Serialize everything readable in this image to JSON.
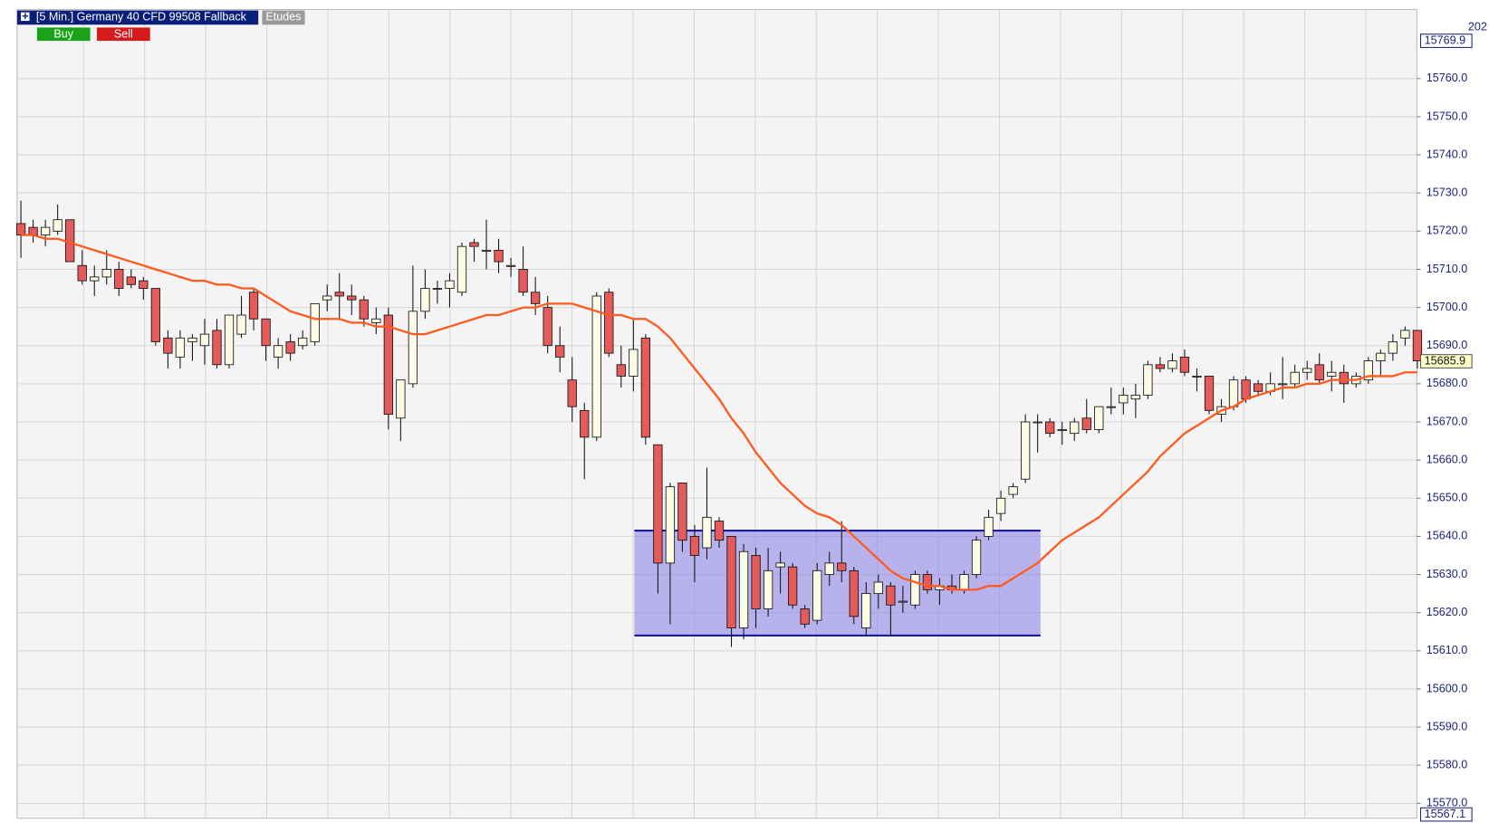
{
  "chart_data": {
    "type": "candlestick",
    "title": "[5 Min.] Germany 40 CFD  99508 Fallback",
    "buttons": [
      "Etudes",
      "Buy",
      "Sell"
    ],
    "corner_text": "202",
    "ylim": [
      15567.1,
      15769.9
    ],
    "yticks": [
      {
        "value": 15570,
        "label": "15570.0"
      },
      {
        "value": 15580,
        "label": "15580.0"
      },
      {
        "value": 15590,
        "label": "15590.0"
      },
      {
        "value": 15600,
        "label": "15600.0"
      },
      {
        "value": 15610,
        "label": "15610.0"
      },
      {
        "value": 15620,
        "label": "15620.0"
      },
      {
        "value": 15630,
        "label": "15630.0"
      },
      {
        "value": 15640,
        "label": "15640.0"
      },
      {
        "value": 15650,
        "label": "15650.0"
      },
      {
        "value": 15660,
        "label": "15660.0"
      },
      {
        "value": 15670,
        "label": "15670.0"
      },
      {
        "value": 15680,
        "label": "15680.0"
      },
      {
        "value": 15690,
        "label": "15690.0"
      },
      {
        "value": 15700,
        "label": "15700.0"
      },
      {
        "value": 15710,
        "label": "15710.0"
      },
      {
        "value": 15720,
        "label": "15720.0"
      },
      {
        "value": 15730,
        "label": "15730.0"
      },
      {
        "value": 15740,
        "label": "15740.0"
      },
      {
        "value": 15750,
        "label": "15750.0"
      },
      {
        "value": 15760,
        "label": "15760.0"
      }
    ],
    "grid": true,
    "last_price": 15685.9,
    "up_color": "#fdfbe3",
    "down_color": "#e55a5a",
    "box": {
      "low": 15614,
      "high": 15641.5,
      "color": "#8f86e6"
    },
    "ohlc": [
      [
        15722,
        15728,
        15713,
        15719
      ],
      [
        15721,
        15723,
        15717,
        15719
      ],
      [
        15719,
        15723,
        15716,
        15721
      ],
      [
        15720,
        15727,
        15719,
        15723
      ],
      [
        15723,
        15723,
        15712,
        15712
      ],
      [
        15711,
        15715,
        15706,
        15707
      ],
      [
        15707,
        15711,
        15703,
        15708
      ],
      [
        15708,
        15715,
        15706,
        15710
      ],
      [
        15710,
        15712,
        15703,
        15705
      ],
      [
        15708,
        15710,
        15705,
        15706
      ],
      [
        15707,
        15708,
        15702,
        15705
      ],
      [
        15705,
        15705,
        15690,
        15691
      ],
      [
        15692,
        15694,
        15684,
        15688
      ],
      [
        15687,
        15694,
        15684,
        15692
      ],
      [
        15691,
        15693,
        15686,
        15692
      ],
      [
        15690,
        15697,
        15685,
        15693
      ],
      [
        15694,
        15697,
        15684,
        15685
      ],
      [
        15685,
        15698,
        15684,
        15698
      ],
      [
        15693,
        15703,
        15692,
        15698
      ],
      [
        15704,
        15705,
        15694,
        15697
      ],
      [
        15697,
        15697,
        15686,
        15690
      ],
      [
        15687,
        15692,
        15684,
        15690
      ],
      [
        15691,
        15693,
        15686,
        15688
      ],
      [
        15690,
        15694,
        15689,
        15692
      ],
      [
        15691,
        15701,
        15690,
        15701
      ],
      [
        15702,
        15706,
        15699,
        15703
      ],
      [
        15704,
        15709,
        15697,
        15703
      ],
      [
        15703,
        15706,
        15698,
        15702
      ],
      [
        15702,
        15703,
        15695,
        15697
      ],
      [
        15696,
        15700,
        15693,
        15697
      ],
      [
        15698,
        15700,
        15668,
        15672
      ],
      [
        15671,
        15681,
        15665,
        15681
      ],
      [
        15680,
        15711,
        15679,
        15699
      ],
      [
        15699,
        15710,
        15697,
        15705
      ],
      [
        15705,
        15707,
        15701,
        15705
      ],
      [
        15705,
        15709,
        15700,
        15707
      ],
      [
        15704,
        15717,
        15703,
        15716
      ],
      [
        15717,
        15718,
        15712,
        15716
      ],
      [
        15715,
        15723,
        15710,
        15715
      ],
      [
        15715,
        15718,
        15709,
        15712
      ],
      [
        15711,
        15713,
        15708,
        15711
      ],
      [
        15710,
        15716,
        15703,
        15704
      ],
      [
        15704,
        15708,
        15698,
        15701
      ],
      [
        15700,
        15703,
        15688,
        15690
      ],
      [
        15690,
        15695,
        15683,
        15687
      ],
      [
        15681,
        15687,
        15670,
        15674
      ],
      [
        15673,
        15675,
        15655,
        15666
      ],
      [
        15666,
        15704,
        15665,
        15703
      ],
      [
        15704,
        15705,
        15687,
        15688
      ],
      [
        15685,
        15690,
        15679,
        15682
      ],
      [
        15682,
        15697,
        15678,
        15689
      ],
      [
        15692,
        15693,
        15664,
        15666
      ],
      [
        15664,
        15664,
        15625,
        15633
      ],
      [
        15633,
        15654,
        15617,
        15653
      ],
      [
        15654,
        15654,
        15636,
        15639
      ],
      [
        15640,
        15643,
        15628,
        15635
      ],
      [
        15637,
        15658,
        15634,
        15645
      ],
      [
        15644,
        15645,
        15637,
        15639
      ],
      [
        15640,
        15640,
        15611,
        15616
      ],
      [
        15616,
        15638,
        15613,
        15636
      ],
      [
        15635,
        15637,
        15616,
        15621
      ],
      [
        15621,
        15637,
        15619,
        15631
      ],
      [
        15632,
        15636,
        15625,
        15633
      ],
      [
        15632,
        15633,
        15621,
        15622
      ],
      [
        15621,
        15622,
        15616,
        15617
      ],
      [
        15618,
        15633,
        15617,
        15631
      ],
      [
        15630,
        15636,
        15627,
        15633
      ],
      [
        15633,
        15644,
        15628,
        15631
      ],
      [
        15631,
        15632,
        15617,
        15619
      ],
      [
        15616,
        15628,
        15614,
        15625
      ],
      [
        15625,
        15630,
        15621,
        15628
      ],
      [
        15627,
        15628,
        15614,
        15622
      ],
      [
        15623,
        15627,
        15620,
        15623
      ],
      [
        15622,
        15631,
        15621,
        15630
      ],
      [
        15630,
        15631,
        15625,
        15626
      ],
      [
        15626,
        15629,
        15622,
        15627
      ],
      [
        15627,
        15630,
        15625,
        15626
      ],
      [
        15626,
        15631,
        15625,
        15630
      ],
      [
        15630,
        15640,
        15629,
        15639
      ],
      [
        15640,
        15647,
        15639,
        15645
      ],
      [
        15646,
        15652,
        15644,
        15650
      ],
      [
        15651,
        15654,
        15650,
        15653
      ],
      [
        15655,
        15672,
        15654,
        15670
      ],
      [
        15670,
        15672,
        15662,
        15670
      ],
      [
        15670,
        15671,
        15666,
        15667
      ],
      [
        15668,
        15670,
        15664,
        15668
      ],
      [
        15667,
        15671,
        15665,
        15670
      ],
      [
        15671,
        15676,
        15667,
        15668
      ],
      [
        15668,
        15674,
        15667,
        15674
      ],
      [
        15674,
        15679,
        15672,
        15674
      ],
      [
        15675,
        15679,
        15672,
        15677
      ],
      [
        15676,
        15680,
        15671,
        15677
      ],
      [
        15677,
        15686,
        15676,
        15685
      ],
      [
        15685,
        15687,
        15683,
        15684
      ],
      [
        15684,
        15688,
        15683,
        15686
      ],
      [
        15687,
        15689,
        15682,
        15683
      ],
      [
        15682,
        15684,
        15678,
        15682
      ],
      [
        15682,
        15682,
        15672,
        15673
      ],
      [
        15672,
        15676,
        15670,
        15674
      ],
      [
        15674,
        15682,
        15673,
        15681
      ],
      [
        15681,
        15682,
        15675,
        15676
      ],
      [
        15680,
        15681,
        15677,
        15678
      ],
      [
        15678,
        15683,
        15677,
        15680
      ],
      [
        15680,
        15687,
        15676,
        15680
      ],
      [
        15680,
        15685,
        15679,
        15683
      ],
      [
        15683,
        15686,
        15681,
        15684
      ],
      [
        15685,
        15688,
        15680,
        15681
      ],
      [
        15682,
        15686,
        15678,
        15683
      ],
      [
        15683,
        15685,
        15675,
        15680
      ],
      [
        15680,
        15683,
        15679,
        15682
      ],
      [
        15681,
        15687,
        15680,
        15686
      ],
      [
        15686,
        15689,
        15682,
        15688
      ],
      [
        15688,
        15693,
        15686,
        15691
      ],
      [
        15692,
        15695,
        15690,
        15694
      ],
      [
        15694,
        15694,
        15684,
        15686
      ]
    ],
    "series": [
      {
        "color": "#ff5a1f",
        "values": [
          15719,
          15719,
          15718,
          15718,
          15717,
          15716,
          15715,
          15714,
          15713,
          15712,
          15711,
          15710,
          15709,
          15708,
          15707,
          15707,
          15706,
          15706,
          15705,
          15705,
          15703,
          15701,
          15699,
          15698,
          15697,
          15697,
          15697,
          15696,
          15696,
          15695,
          15695,
          15694,
          15693,
          15693,
          15694,
          15695,
          15696,
          15697,
          15698,
          15698,
          15699,
          15700,
          15700,
          15701,
          15701,
          15701,
          15700,
          15699,
          15698,
          15698,
          15697,
          15697,
          15695,
          15692,
          15688,
          15684,
          15680,
          15676,
          15671,
          15667,
          15662,
          15658,
          15654,
          15651,
          15648,
          15646,
          15645,
          15643,
          15640,
          15637,
          15634,
          15631,
          15629,
          15628,
          15627,
          15627,
          15626,
          15626,
          15626,
          15627,
          15627,
          15629,
          15631,
          15633,
          15636,
          15639,
          15641,
          15643,
          15645,
          15648,
          15651,
          15654,
          15657,
          15661,
          15664,
          15667,
          15669,
          15671,
          15673,
          15674,
          15676,
          15677,
          15678,
          15679,
          15679,
          15680,
          15680,
          15681,
          15681,
          15681,
          15682,
          15682,
          15682,
          15683,
          15683
        ]
      }
    ]
  }
}
